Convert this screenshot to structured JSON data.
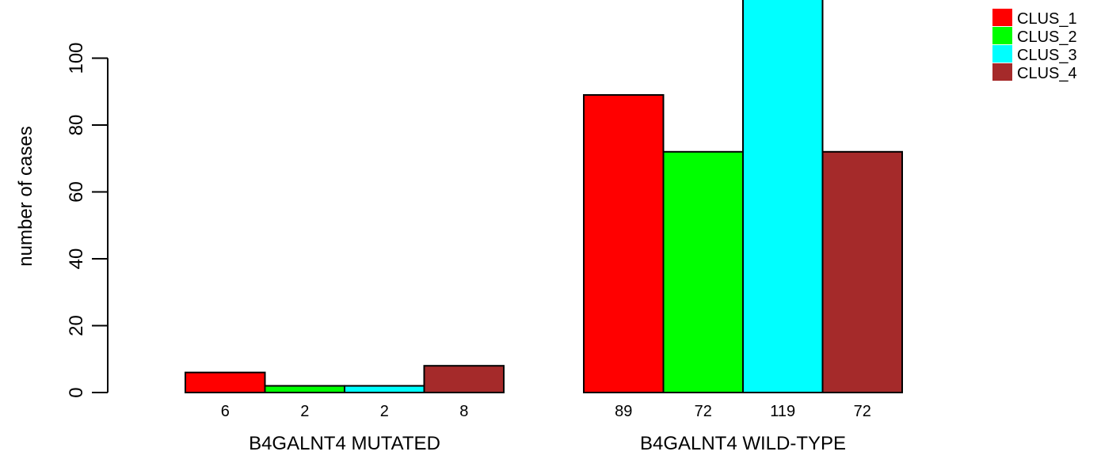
{
  "chart_data": {
    "type": "bar",
    "ylabel": "number of cases",
    "ylim": [
      0,
      120
    ],
    "yticks": [
      0,
      20,
      40,
      60,
      80,
      100
    ],
    "groups": [
      {
        "label": "B4GALNT4 MUTATED",
        "values": [
          6,
          2,
          2,
          8
        ]
      },
      {
        "label": "B4GALNT4 WILD-TYPE",
        "values": [
          89,
          72,
          119,
          72
        ]
      }
    ],
    "series": [
      {
        "name": "CLUS_1",
        "color": "#ff0000"
      },
      {
        "name": "CLUS_2",
        "color": "#00ff00"
      },
      {
        "name": "CLUS_3",
        "color": "#00ffff"
      },
      {
        "name": "CLUS_4",
        "color": "#a52a2a"
      }
    ],
    "legend_position": "top-right"
  }
}
